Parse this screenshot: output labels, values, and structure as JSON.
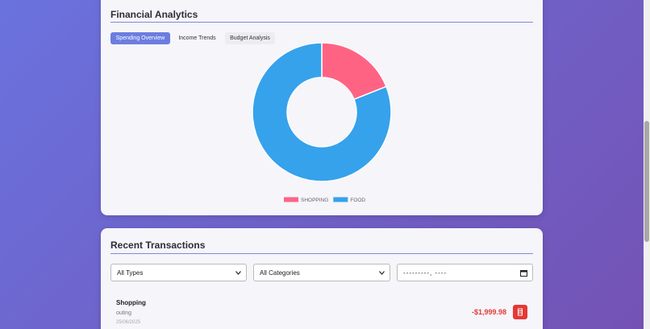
{
  "analytics": {
    "title": "Financial Analytics",
    "tabs": [
      "Spending Overview",
      "Income Trends",
      "Budget Analysis"
    ]
  },
  "chart_data": {
    "type": "doughnut",
    "categories": [
      "SHOPPING",
      "FOOD"
    ],
    "values": [
      19,
      81
    ],
    "colors": [
      "#ff6384",
      "#36a2eb"
    ]
  },
  "transactions": {
    "title": "Recent Transactions",
    "filters": [
      "All Types",
      "All Categories",
      "---------, ----"
    ],
    "items": [
      {
        "name": "Shopping",
        "note": "outing",
        "date": "25/06/2025",
        "amount": "-$1,999.98"
      }
    ]
  }
}
